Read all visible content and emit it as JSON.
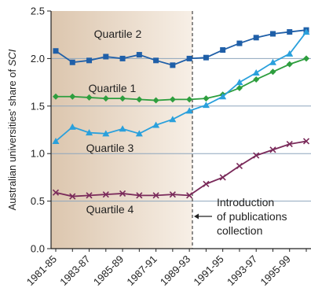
{
  "chart_data": {
    "type": "line",
    "ylabel_prefix": "Australian universities' share of ",
    "ylabel_italic": "SCI",
    "xlabel": "",
    "x": [
      "1981-85",
      "1982-86",
      "1983-87",
      "1984-88",
      "1985-89",
      "1986-90",
      "1987-91",
      "1988-92",
      "1989-93",
      "1990-94",
      "1991-95",
      "1992-96",
      "1993-97",
      "1994-98",
      "1995-99",
      "1996-00"
    ],
    "x_tick_labels": [
      "1981-85",
      "1983-87",
      "1985-89",
      "1987-91",
      "1989-93",
      "1991-95",
      "1993-97",
      "1995-99"
    ],
    "ylim": [
      0,
      2.5
    ],
    "y_ticks": [
      "0.0",
      "0.5",
      "1.0",
      "1.5",
      "2.0",
      "2.5"
    ],
    "series": [
      {
        "name": "Quartile 2",
        "color": "#1f5fa8",
        "marker": "square",
        "values": [
          2.08,
          1.96,
          1.98,
          2.02,
          2.0,
          2.04,
          1.98,
          1.93,
          2.0,
          2.01,
          2.09,
          2.16,
          2.22,
          2.26,
          2.28,
          2.3
        ]
      },
      {
        "name": "Quartile 1",
        "color": "#2e9e3e",
        "marker": "diamond",
        "values": [
          1.6,
          1.6,
          1.59,
          1.58,
          1.58,
          1.57,
          1.56,
          1.57,
          1.57,
          1.58,
          1.62,
          1.69,
          1.78,
          1.86,
          1.94,
          2.0
        ]
      },
      {
        "name": "Quartile 3",
        "color": "#2aa0dc",
        "marker": "triangle",
        "values": [
          1.13,
          1.28,
          1.22,
          1.21,
          1.26,
          1.21,
          1.3,
          1.36,
          1.45,
          1.51,
          1.6,
          1.75,
          1.85,
          1.96,
          2.05,
          2.28
        ]
      },
      {
        "name": "Quartile 4",
        "color": "#7a2a5a",
        "marker": "x",
        "values": [
          0.59,
          0.55,
          0.56,
          0.57,
          0.58,
          0.56,
          0.56,
          0.57,
          0.56,
          0.68,
          0.75,
          0.87,
          0.98,
          1.04,
          1.1,
          1.13
        ]
      }
    ],
    "annotation": {
      "lines": [
        "Introduction",
        "of publications",
        "collection"
      ]
    },
    "grid": "horizontal"
  }
}
